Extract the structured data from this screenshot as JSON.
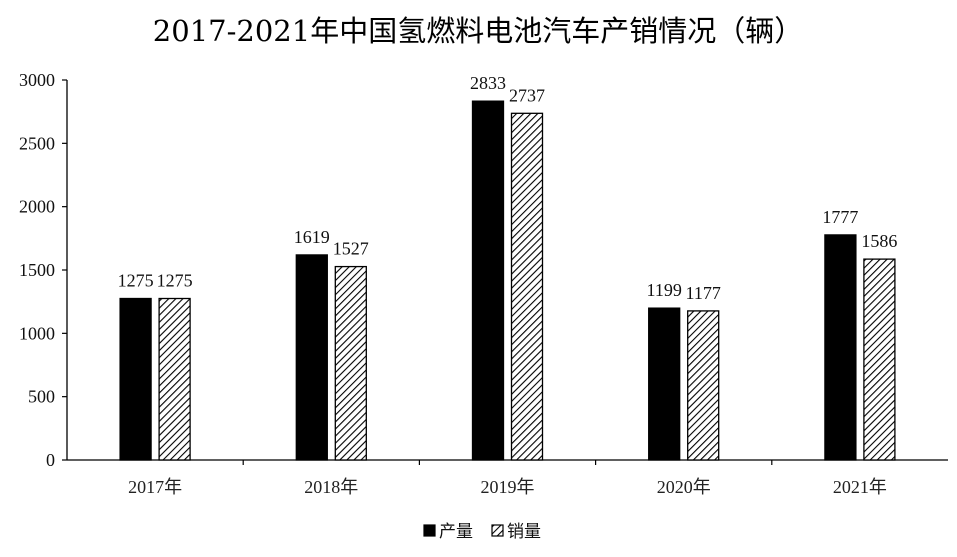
{
  "chart_data": {
    "type": "bar",
    "title": "2017-2021年中国氢燃料电池汽车产销情况（辆）",
    "categories": [
      "2017年",
      "2018年",
      "2019年",
      "2020年",
      "2021年"
    ],
    "series": [
      {
        "name": "产量",
        "values": [
          1275,
          1619,
          2833,
          1199,
          1777
        ],
        "color": "#000000",
        "pattern": "solid"
      },
      {
        "name": "销量",
        "values": [
          1275,
          1527,
          2737,
          1177,
          1586
        ],
        "color": "#000000",
        "pattern": "diagonal-hatch"
      }
    ],
    "ylim": [
      0,
      3000
    ],
    "yticks": [
      0,
      500,
      1000,
      1500,
      2000,
      2500,
      3000
    ],
    "xlabel": "",
    "ylabel": "",
    "grid": false,
    "legend": "bottom-center",
    "data_labels": true
  }
}
